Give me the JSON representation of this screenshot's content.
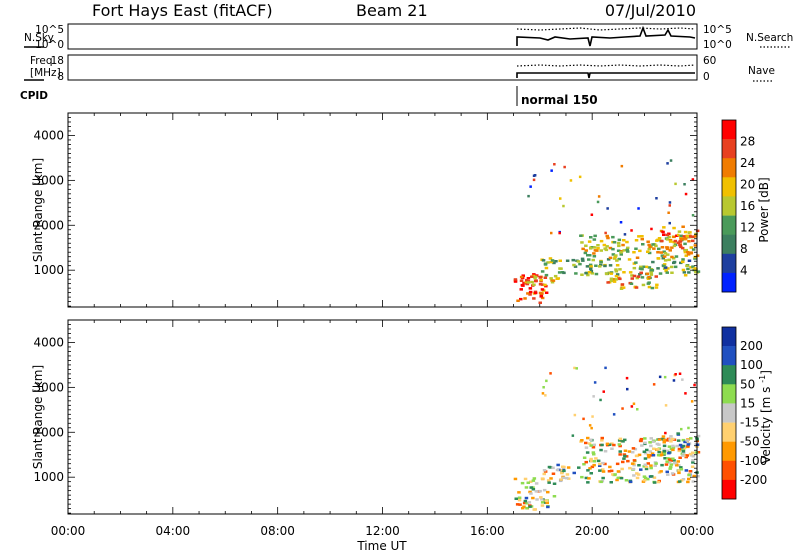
{
  "header": {
    "title": "Fort Hays East (fitACF)",
    "beam": "Beam 21",
    "date": "07/Jul/2010"
  },
  "params": {
    "nsky_label": "N.Sky",
    "nsky_ticks": [
      "10^5",
      "10^0"
    ],
    "nsearch_label": "N.Search",
    "nsearch_ticks": [
      "10^5",
      "10^0"
    ],
    "freq_label": "Freq.",
    "freq_unit": "[MHz]",
    "freq_ticks": [
      "18",
      "8"
    ],
    "nave_label": "Nave",
    "nave_ticks": [
      "60",
      "0"
    ],
    "cpid_label": "CPID",
    "cpid_value": "normal 150"
  },
  "colors": {
    "power": [
      "#0022ff",
      "#1e3f9f",
      "#3c7f5f",
      "#4a9a5a",
      "#b8c830",
      "#f0c000",
      "#f07c00",
      "#e84020",
      "#ff0000"
    ],
    "velocity": [
      "#ff0000",
      "#ff5000",
      "#ff9900",
      "#ffd070",
      "#c8c8c8",
      "#8edc50",
      "#2e8b57",
      "#2050c0",
      "#1030a0"
    ]
  },
  "chart_data": [
    {
      "type": "heatmap",
      "panel": "power",
      "ylabel": "Slant Range [km]",
      "ylim": [
        180,
        4500
      ],
      "y_ticks": [
        "1000",
        "2000",
        "3000",
        "4000"
      ],
      "xlim": [
        0,
        24
      ],
      "colorbar": {
        "label": "Power [dB]",
        "range": [
          0,
          32
        ],
        "ticks": [
          "4",
          "8",
          "12",
          "16",
          "20",
          "24",
          "28"
        ]
      },
      "data_window_ut": [
        17.0,
        24.0
      ],
      "echo_regions": [
        {
          "ut": [
            17.0,
            18.2
          ],
          "range_km": [
            300,
            1000
          ],
          "value": 26
        },
        {
          "ut": [
            17.0,
            19.0
          ],
          "range_km": [
            700,
            900
          ],
          "value": 18
        },
        {
          "ut": [
            18.0,
            24.0
          ],
          "range_km": [
            900,
            1300
          ],
          "value": 12
        },
        {
          "ut": [
            19.5,
            24.0
          ],
          "range_km": [
            1300,
            1800
          ],
          "value": 16
        },
        {
          "ut": [
            22.5,
            24.0
          ],
          "range_km": [
            1500,
            2000
          ],
          "value": 22
        },
        {
          "ut": [
            20.5,
            22.5
          ],
          "range_km": [
            600,
            1000
          ],
          "value": 18
        }
      ]
    },
    {
      "type": "heatmap",
      "panel": "velocity",
      "xlabel": "Time UT",
      "ylabel": "Slant Range [km]",
      "ylim": [
        180,
        4500
      ],
      "y_ticks": [
        "1000",
        "2000",
        "3000",
        "4000"
      ],
      "xlim": [
        0,
        24
      ],
      "x_ticks": [
        "00:00",
        "04:00",
        "08:00",
        "12:00",
        "16:00",
        "20:00",
        "00:00"
      ],
      "colorbar": {
        "label": "Velocity [m s^-1]",
        "ticks": [
          "200",
          "100",
          "50",
          "15",
          "-15",
          "-50",
          "-100",
          "-200"
        ]
      },
      "data_window_ut": [
        17.0,
        24.0
      ],
      "echo_regions": [
        {
          "ut": [
            17.0,
            18.5
          ],
          "range_km": [
            300,
            1000
          ],
          "value": -5
        },
        {
          "ut": [
            18.0,
            24.0
          ],
          "range_km": [
            900,
            1300
          ],
          "value": 10
        },
        {
          "ut": [
            19.5,
            24.0
          ],
          "range_km": [
            1300,
            1900
          ],
          "value": -20
        },
        {
          "ut": [
            22.0,
            24.0
          ],
          "range_km": [
            1500,
            2000
          ],
          "value": 0
        }
      ]
    }
  ]
}
